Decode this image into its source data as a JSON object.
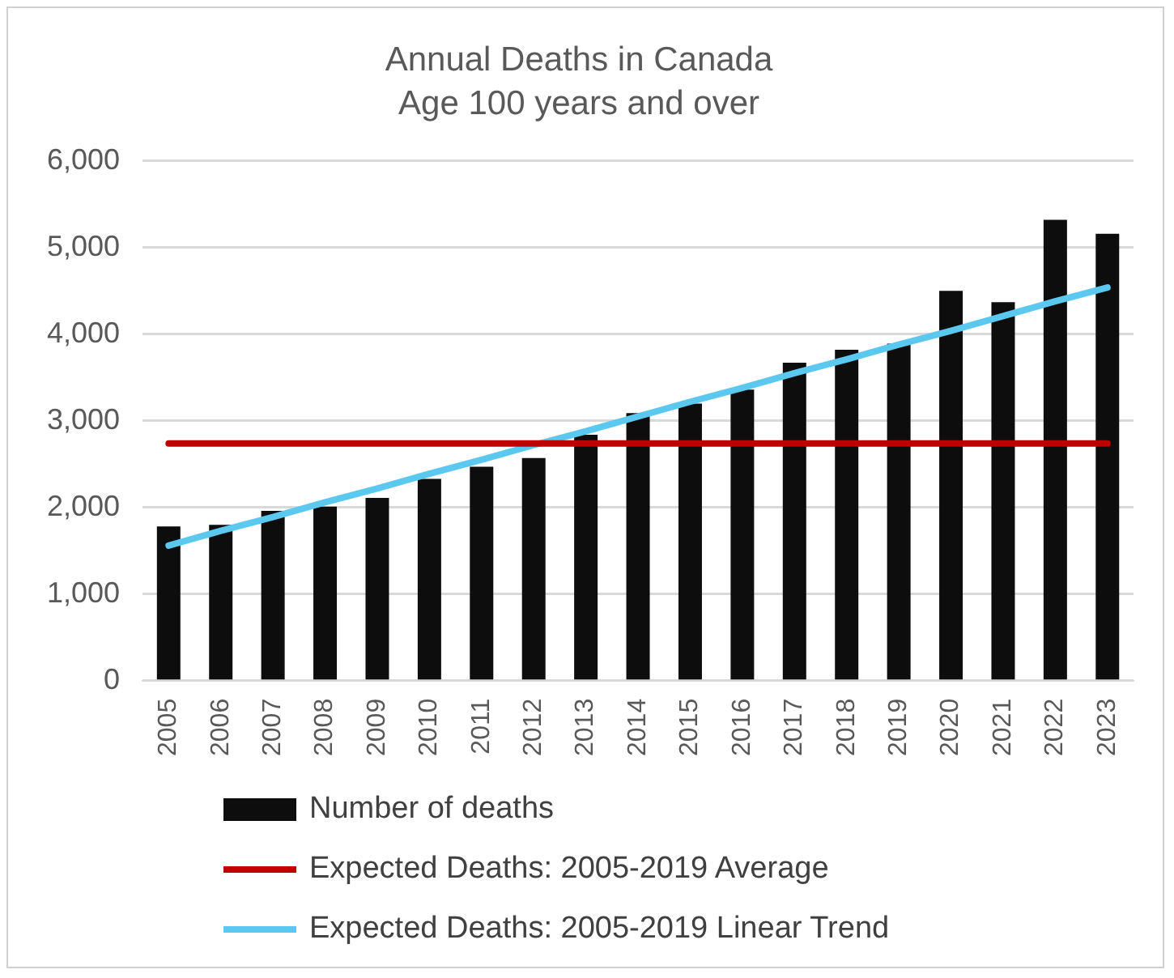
{
  "chart_data": {
    "type": "bar",
    "title": "Annual Deaths in Canada",
    "subtitle": "Age 100 years and over",
    "categories": [
      "2005",
      "2006",
      "2007",
      "2008",
      "2009",
      "2010",
      "2011",
      "2012",
      "2013",
      "2014",
      "2015",
      "2016",
      "2017",
      "2018",
      "2019",
      "2020",
      "2021",
      "2022",
      "2023"
    ],
    "series": [
      {
        "name": "Number of deaths",
        "color": "#0d0d0d",
        "values": [
          1780,
          1800,
          1960,
          2010,
          2110,
          2330,
          2470,
          2570,
          2840,
          3090,
          3200,
          3360,
          3670,
          3820,
          3890,
          4500,
          4370,
          5320,
          5160
        ]
      },
      {
        "name": "Expected Deaths: 2005-2019 Average",
        "type": "line",
        "color": "#c00000",
        "values": [
          2740,
          2740,
          2740,
          2740,
          2740,
          2740,
          2740,
          2740,
          2740,
          2740,
          2740,
          2740,
          2740,
          2740,
          2740,
          2740,
          2740,
          2740,
          2740
        ]
      },
      {
        "name": "Expected Deaths: 2005-2019 Linear Trend",
        "type": "line",
        "color": "#5bc8f0",
        "values": [
          1560,
          1730,
          1890,
          2060,
          2220,
          2390,
          2550,
          2720,
          2880,
          3050,
          3220,
          3380,
          3550,
          3710,
          3880,
          4040,
          4210,
          4380,
          4540
        ]
      }
    ],
    "ylim": [
      0,
      6000
    ],
    "yticks": [
      {
        "value": 0,
        "label": "0"
      },
      {
        "value": 1000,
        "label": "1,000"
      },
      {
        "value": 2000,
        "label": "2,000"
      },
      {
        "value": 3000,
        "label": "3,000"
      },
      {
        "value": 4000,
        "label": "4,000"
      },
      {
        "value": 5000,
        "label": "5,000"
      },
      {
        "value": 6000,
        "label": "6,000"
      }
    ],
    "grid": "y",
    "legend": "bottom",
    "marker": "none"
  }
}
